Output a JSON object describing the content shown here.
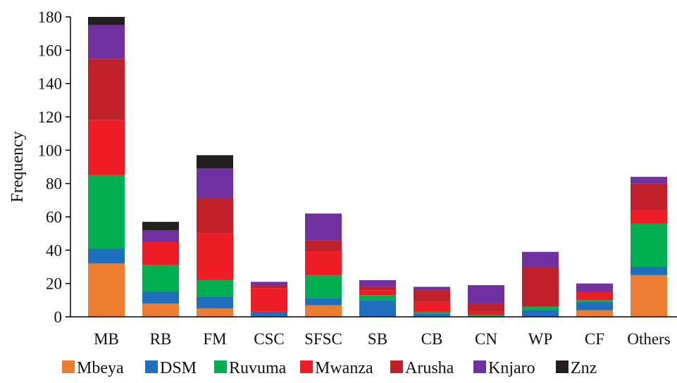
{
  "chart_data": {
    "type": "bar",
    "stacked": true,
    "title": "",
    "xlabel": "",
    "ylabel": "Frequency",
    "ylim": [
      0,
      180
    ],
    "yticks": [
      0,
      20,
      40,
      60,
      80,
      100,
      120,
      140,
      160,
      180
    ],
    "grid": false,
    "legend_position": "bottom",
    "categories": [
      "MB",
      "RB",
      "FM",
      "CSC",
      "SFSC",
      "SB",
      "CB",
      "CN",
      "WP",
      "CF",
      "Others"
    ],
    "series": [
      {
        "name": "Mbeya",
        "color": "#ed7d31",
        "values": [
          32,
          8,
          5,
          0,
          7,
          0,
          0,
          0,
          0,
          4,
          25
        ]
      },
      {
        "name": "DSM",
        "color": "#1f6fbf",
        "values": [
          9,
          7,
          7,
          3,
          4,
          10,
          2,
          0,
          4,
          5,
          5
        ]
      },
      {
        "name": "Ruvuma",
        "color": "#00b050",
        "values": [
          44,
          16,
          10,
          0,
          14,
          3,
          1,
          1,
          2,
          1,
          26
        ]
      },
      {
        "name": "Mwanza",
        "color": "#ee1c25",
        "values": [
          33,
          14,
          28,
          14,
          14,
          3,
          6,
          2,
          0,
          5,
          8
        ]
      },
      {
        "name": "Arusha",
        "color": "#c0202a",
        "values": [
          37,
          0,
          21,
          2,
          7,
          2,
          7,
          5,
          24,
          0,
          16
        ]
      },
      {
        "name": "Knjaro",
        "color": "#7030a0",
        "values": [
          20,
          7,
          18,
          2,
          16,
          4,
          2,
          11,
          9,
          5,
          4
        ]
      },
      {
        "name": "Znz",
        "color": "#231f20",
        "values": [
          5,
          5,
          8,
          0,
          0,
          0,
          0,
          0,
          0,
          0,
          0
        ]
      }
    ]
  }
}
